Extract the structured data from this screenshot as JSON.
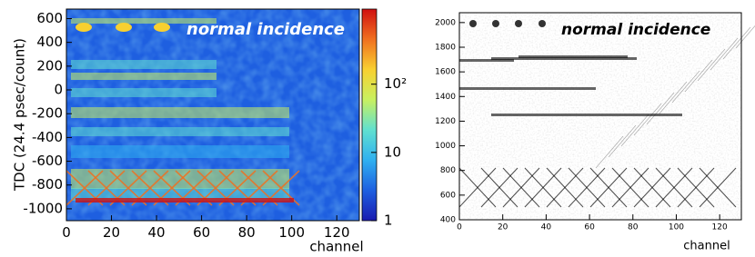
{
  "chart_data": [
    {
      "type": "heatmap",
      "annotation": "normal incidence",
      "ylabel": "TDC (24.4 psec/count)",
      "xlabel": "channel",
      "xlim": [
        0,
        130
      ],
      "xticks": [
        0,
        20,
        40,
        60,
        80,
        100,
        120
      ],
      "ylim": [
        -1100,
        680
      ],
      "yticks": [
        -1000,
        -800,
        -600,
        -400,
        -200,
        0,
        200,
        400,
        600
      ],
      "zlim": [
        1,
        1260
      ],
      "zticks": [
        1,
        10,
        {
          "value": 100,
          "label": "10²"
        }
      ],
      "log_z": true,
      "colormap": [
        "#1a1ab0",
        "#1e5fe0",
        "#30b0f0",
        "#60e0d0",
        "#c8f060",
        "#f8d030",
        "#f07020",
        "#d01010"
      ]
    },
    {
      "type": "heatmap",
      "annotation": "normal incidence",
      "xlabel": "channel",
      "xlim": [
        0,
        130
      ],
      "xticks": [
        0,
        20,
        40,
        60,
        80,
        100,
        120
      ],
      "ylim": [
        400,
        2080
      ],
      "yticks": [
        400,
        600,
        800,
        1000,
        1200,
        1400,
        1600,
        1800,
        2000
      ],
      "colormap": [
        "#ffffff",
        "#000000"
      ]
    }
  ]
}
